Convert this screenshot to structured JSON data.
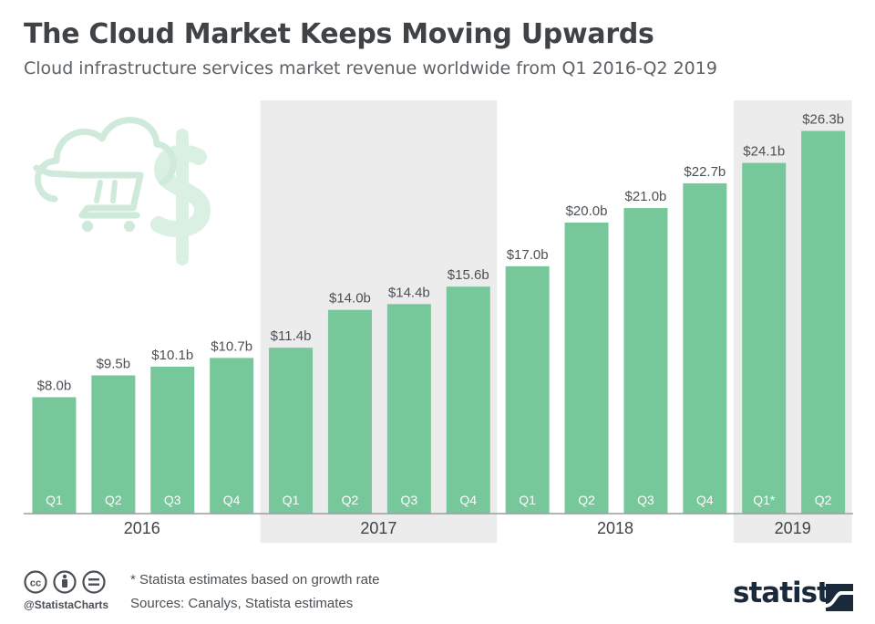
{
  "header": {
    "title": "The Cloud Market Keeps Moving Upwards",
    "subtitle": "Cloud infrastructure services market revenue worldwide from Q1 2016-Q2 2019"
  },
  "footer": {
    "note": "* Statista estimates based on growth rate",
    "sources": "Sources: Canalys, Statista estimates",
    "handle": "@StatistaCharts",
    "brand": "statista"
  },
  "colors": {
    "bar": "#76c799",
    "year_band": "#ececec",
    "axis": "#9a9ea2",
    "value_label": "#4b5055",
    "icon": "#daf0e3"
  },
  "icons": [
    "cloud-cart-icon",
    "dollar-icon",
    "creative-commons-icon",
    "attribution-icon",
    "no-derivatives-icon",
    "statista-logo-icon"
  ],
  "chart_data": {
    "type": "bar",
    "title": "The Cloud Market Keeps Moving Upwards",
    "subtitle": "Cloud infrastructure services market revenue worldwide from Q1 2016-Q2 2019",
    "categories": [
      "Q1",
      "Q2",
      "Q3",
      "Q4",
      "Q1",
      "Q2",
      "Q3",
      "Q4",
      "Q1",
      "Q2",
      "Q3",
      "Q4",
      "Q1*",
      "Q2"
    ],
    "values": [
      8.0,
      9.5,
      10.1,
      10.7,
      11.4,
      14.0,
      14.4,
      15.6,
      17.0,
      20.0,
      21.0,
      22.7,
      24.1,
      26.3
    ],
    "value_labels": [
      "$8.0b",
      "$9.5b",
      "$10.1b",
      "$10.7b",
      "$11.4b",
      "$14.0b",
      "$14.4b",
      "$15.6b",
      "$17.0b",
      "$20.0b",
      "$21.0b",
      "$22.7b",
      "$24.1b",
      "$26.3b"
    ],
    "groups": [
      {
        "label": "2016",
        "count": 4,
        "shaded": false
      },
      {
        "label": "2017",
        "count": 4,
        "shaded": true
      },
      {
        "label": "2018",
        "count": 4,
        "shaded": false
      },
      {
        "label": "2019",
        "count": 2,
        "shaded": true
      }
    ],
    "unit": "billion U.S. dollars",
    "ylim": [
      0,
      28
    ],
    "grid": false,
    "legend": "none"
  }
}
